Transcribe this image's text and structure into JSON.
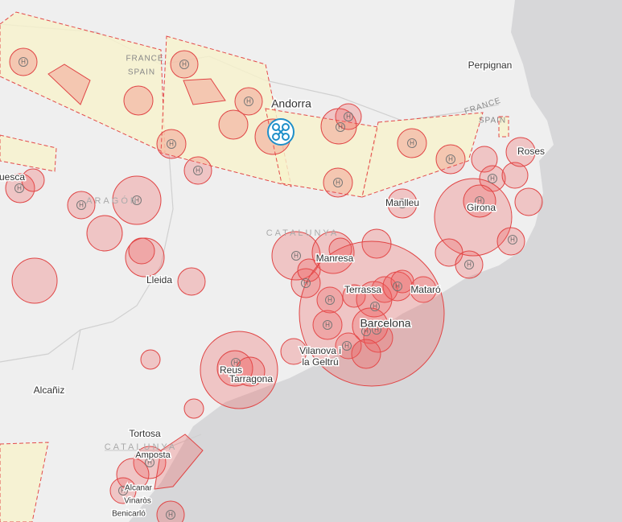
{
  "map": {
    "countries": [
      "FRANCE",
      "SPAIN"
    ],
    "regions": [
      "ARAGÓN",
      "CATALUNYA"
    ],
    "places": [
      "Perpignan",
      "Andorra",
      "Huesca",
      "Manlleu",
      "Girona",
      "Roses",
      "Manresa",
      "Lleida",
      "Terrassa",
      "Mataró",
      "Barcelona",
      "Reus",
      "Tarragona",
      "Alcañiz",
      "Tortosa",
      "Amposta",
      "Alcanar",
      "Vinaròs",
      "Benicarló"
    ],
    "place_multiline": [
      "Vilanova i",
      "la Geltrú"
    ],
    "heliport_symbol": "H"
  }
}
